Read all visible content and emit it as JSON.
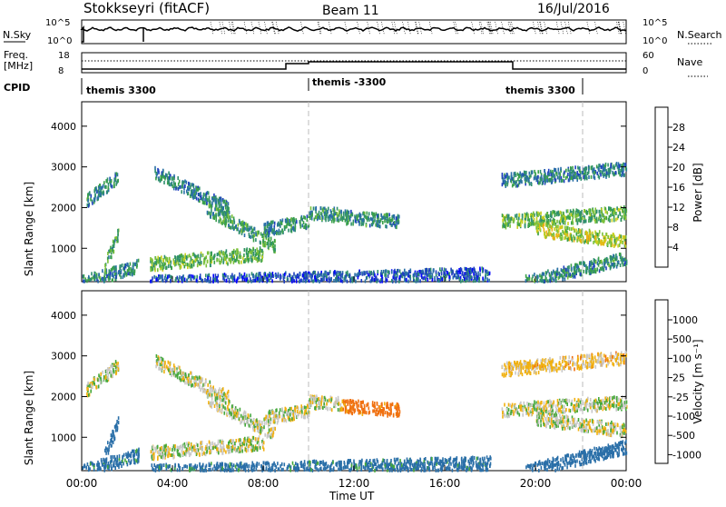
{
  "header": {
    "station": "Stokkseyri (fitACF)",
    "beam": "Beam 11",
    "date": "16/Jul/2016"
  },
  "noise_panel": {
    "left_label": "N.Sky",
    "left_ticks": [
      "10^5",
      "10^0"
    ],
    "right_ticks": [
      "10^5",
      "10^0"
    ],
    "right_label": "N.Search"
  },
  "freq_panel": {
    "left_label_1": "Freq.",
    "left_label_2": "[MHz]",
    "left_ticks": [
      "18",
      "8"
    ],
    "right_ticks": [
      "60",
      "0"
    ],
    "right_label": "Nave"
  },
  "cpid": {
    "label": "CPID",
    "segments": [
      {
        "name": "themis 3300",
        "start_hour": 0
      },
      {
        "name": "themis -3300",
        "start_hour": 10
      },
      {
        "name": "themis 3300",
        "start_hour": 19
      }
    ]
  },
  "power_panel": {
    "ylabel": "Slant Range [km]",
    "colorbar_label": "Power [dB]",
    "colorbar_ticks": [
      "28",
      "24",
      "20",
      "16",
      "12",
      "8",
      "4"
    ],
    "colorbar_colors": [
      "#0000ff",
      "#1f3fbf",
      "#2a6fa8",
      "#2f8f6f",
      "#3aa04a",
      "#7bc03a",
      "#c8d01e",
      "#f0b010",
      "#f07010",
      "#e03a10",
      "#cc0000"
    ]
  },
  "velocity_panel": {
    "ylabel": "Slant Range [km]",
    "colorbar_label": "Velocity [m s⁻¹]",
    "colorbar_ticks": [
      "1000",
      "500",
      "100",
      "25",
      "-25",
      "-100",
      "-500",
      "-1000"
    ],
    "colorbar_colors": [
      "#1c3ca8",
      "#2a6fa8",
      "#2f8f6f",
      "#44a83a",
      "#8cd040",
      "#c8c8c8",
      "#c8c8c8",
      "#f0b010",
      "#f07010",
      "#e03a10",
      "#cc0000"
    ]
  },
  "x_axis": {
    "label": "Time UT",
    "ticks": [
      "00:00",
      "04:00",
      "08:00",
      "12:00",
      "16:00",
      "20:00",
      "00:00"
    ]
  },
  "chart_data": [
    {
      "type": "heatmap",
      "title": "Power [dB]",
      "xlabel": "Time UT",
      "ylabel": "Slant Range [km]",
      "xlim_hours": [
        0,
        24
      ],
      "ylim": [
        180,
        4600
      ],
      "y_ticks": [
        1000,
        2000,
        3000,
        4000
      ],
      "colorbar_range": [
        0,
        32
      ],
      "scatter_bands": [
        {
          "t_start": 0.0,
          "t_end": 2.5,
          "range_start": 200,
          "range_end": 600,
          "power": 10
        },
        {
          "t_start": 1.0,
          "t_end": 1.6,
          "range_start": 600,
          "range_end": 1400,
          "power": 12
        },
        {
          "t_start": 0.2,
          "t_end": 1.6,
          "range_start": 2200,
          "range_end": 2800,
          "power": 10
        },
        {
          "t_start": 3.0,
          "t_end": 8.0,
          "range_start": 650,
          "range_end": 900,
          "power": 14
        },
        {
          "t_start": 3.2,
          "t_end": 6.5,
          "range_start": 2900,
          "range_end": 2000,
          "power": 9
        },
        {
          "t_start": 5.5,
          "t_end": 8.5,
          "range_start": 2000,
          "range_end": 1100,
          "power": 12
        },
        {
          "t_start": 8.0,
          "t_end": 10.0,
          "range_start": 1500,
          "range_end": 1700,
          "power": 10
        },
        {
          "t_start": 10.0,
          "t_end": 11.5,
          "range_start": 1900,
          "range_end": 1850,
          "power": 11
        },
        {
          "t_start": 11.5,
          "t_end": 14.0,
          "range_start": 1800,
          "range_end": 1700,
          "power": 10
        },
        {
          "t_start": 3.0,
          "t_end": 18.0,
          "range_start": 200,
          "range_end": 400,
          "power": 6
        },
        {
          "t_start": 18.5,
          "t_end": 24.0,
          "range_start": 1700,
          "range_end": 1900,
          "power": 14
        },
        {
          "t_start": 20.0,
          "t_end": 24.0,
          "range_start": 1500,
          "range_end": 1200,
          "power": 18
        },
        {
          "t_start": 18.5,
          "t_end": 24.0,
          "range_start": 2700,
          "range_end": 3000,
          "power": 9
        },
        {
          "t_start": 19.5,
          "t_end": 24.0,
          "range_start": 200,
          "range_end": 800,
          "power": 10
        }
      ]
    },
    {
      "type": "heatmap",
      "title": "Velocity [m s⁻¹]",
      "xlabel": "Time UT",
      "ylabel": "Slant Range [km]",
      "xlim_hours": [
        0,
        24
      ],
      "ylim": [
        180,
        4600
      ],
      "y_ticks": [
        1000,
        2000,
        3000,
        4000
      ],
      "colorbar_ticks": [
        1000,
        500,
        100,
        25,
        -25,
        -100,
        -500,
        -1000
      ],
      "scatter_bands": [
        {
          "t_start": 0.0,
          "t_end": 2.5,
          "range_start": 200,
          "range_end": 600,
          "velocity": 150
        },
        {
          "t_start": 1.0,
          "t_end": 1.6,
          "range_start": 600,
          "range_end": 1400,
          "velocity": 300
        },
        {
          "t_start": 0.2,
          "t_end": 1.6,
          "range_start": 2200,
          "range_end": 2800,
          "velocity": 0
        },
        {
          "t_start": 3.0,
          "t_end": 8.0,
          "range_start": 650,
          "range_end": 900,
          "velocity": 0
        },
        {
          "t_start": 3.2,
          "t_end": 6.5,
          "range_start": 2900,
          "range_end": 2000,
          "velocity": 0
        },
        {
          "t_start": 5.5,
          "t_end": 8.5,
          "range_start": 2000,
          "range_end": 1100,
          "velocity": 0
        },
        {
          "t_start": 8.0,
          "t_end": 10.0,
          "range_start": 1500,
          "range_end": 1700,
          "velocity": 0
        },
        {
          "t_start": 10.0,
          "t_end": 11.5,
          "range_start": 1900,
          "range_end": 1850,
          "velocity": 0
        },
        {
          "t_start": 11.5,
          "t_end": 14.0,
          "range_start": 1800,
          "range_end": 1700,
          "velocity": -150
        },
        {
          "t_start": 3.0,
          "t_end": 18.0,
          "range_start": 200,
          "range_end": 400,
          "velocity": 150
        },
        {
          "t_start": 18.5,
          "t_end": 24.0,
          "range_start": 1700,
          "range_end": 1900,
          "velocity": 0
        },
        {
          "t_start": 20.0,
          "t_end": 24.0,
          "range_start": 1500,
          "range_end": 1200,
          "velocity": 0
        },
        {
          "t_start": 18.5,
          "t_end": 24.0,
          "range_start": 2700,
          "range_end": 3000,
          "velocity": -50
        },
        {
          "t_start": 19.5,
          "t_end": 24.0,
          "range_start": 200,
          "range_end": 800,
          "velocity": 200
        }
      ]
    }
  ]
}
